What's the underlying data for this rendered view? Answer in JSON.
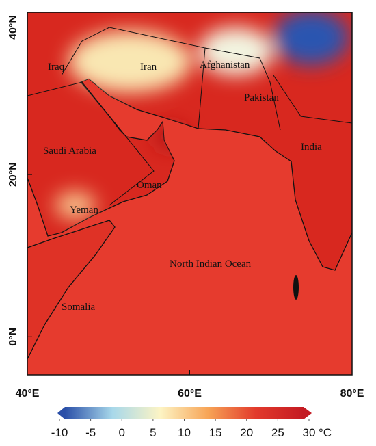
{
  "map": {
    "xlim": [
      40,
      80
    ],
    "ylim": [
      -4.7,
      40
    ],
    "xticks": [
      {
        "value": 40,
        "label": "40°E"
      },
      {
        "value": 60,
        "label": "60°E"
      },
      {
        "value": 80,
        "label": "80°E"
      }
    ],
    "yticks": [
      {
        "value": 0,
        "label": "0°N"
      },
      {
        "value": 20,
        "label": "20°N"
      },
      {
        "value": 40,
        "label": "40°N"
      }
    ],
    "labels": [
      "Iraq",
      "Iran",
      "Afghanistan",
      "Pakistan",
      "Saudi Arabia",
      "India",
      "Oman",
      "Yeman",
      "North Indian Ocean",
      "Somalia"
    ]
  },
  "colorbar": {
    "range": [
      -10,
      30
    ],
    "ticks": [
      -10,
      -5,
      0,
      5,
      10,
      15,
      20,
      25,
      30
    ],
    "unit": "°C",
    "colors": [
      "#2a4fa8",
      "#a8d8ea",
      "#fdf4c4",
      "#f7a456",
      "#e23a2c",
      "#c41a22"
    ]
  }
}
